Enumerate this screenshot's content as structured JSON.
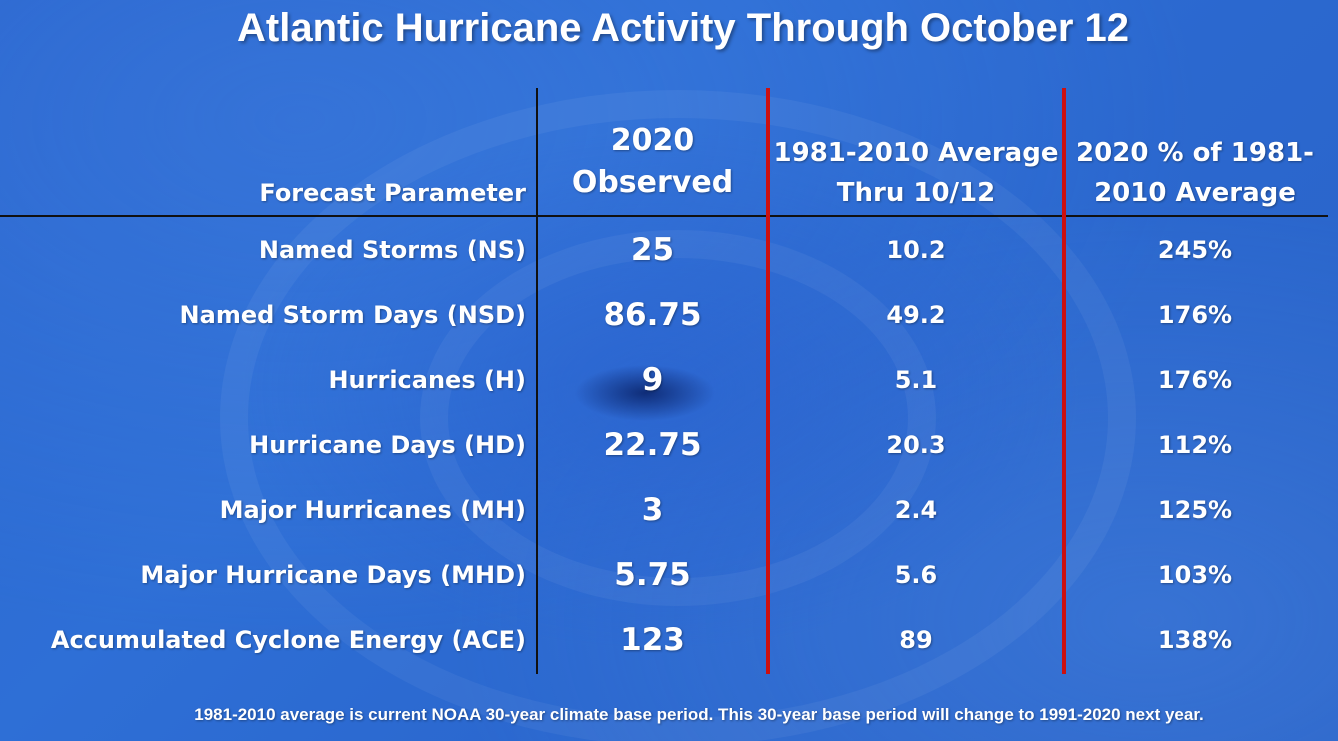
{
  "title": "Atlantic Hurricane Activity Through October 12",
  "chart_data": {
    "type": "table",
    "columns": [
      "Forecast Parameter",
      "2020 Observed",
      "1981-2010 Average Thru 10/12",
      "2020 % of 1981-2010 Average"
    ],
    "rows": [
      {
        "parameter": "Named Storms (NS)",
        "observed": "25",
        "average": "10.2",
        "percent": "245%"
      },
      {
        "parameter": "Named Storm Days (NSD)",
        "observed": "86.75",
        "average": "49.2",
        "percent": "176%"
      },
      {
        "parameter": "Hurricanes (H)",
        "observed": "9",
        "average": "5.1",
        "percent": "176%"
      },
      {
        "parameter": "Hurricane Days (HD)",
        "observed": "22.75",
        "average": "20.3",
        "percent": "112%"
      },
      {
        "parameter": "Major Hurricanes (MH)",
        "observed": "3",
        "average": "2.4",
        "percent": "125%"
      },
      {
        "parameter": "Major Hurricane Days (MHD)",
        "observed": "5.75",
        "average": "5.6",
        "percent": "103%"
      },
      {
        "parameter": "Accumulated Cyclone Energy (ACE)",
        "observed": "123",
        "average": "89",
        "percent": "138%"
      }
    ]
  },
  "footnote": "1981-2010 average is current NOAA 30-year climate base period. This 30-year base period will change to 1991-2020 next year.",
  "colors": {
    "background": "#2b68cf",
    "text": "#ffffff",
    "header_rule": "#111111",
    "divider_red": "#cc1010"
  }
}
